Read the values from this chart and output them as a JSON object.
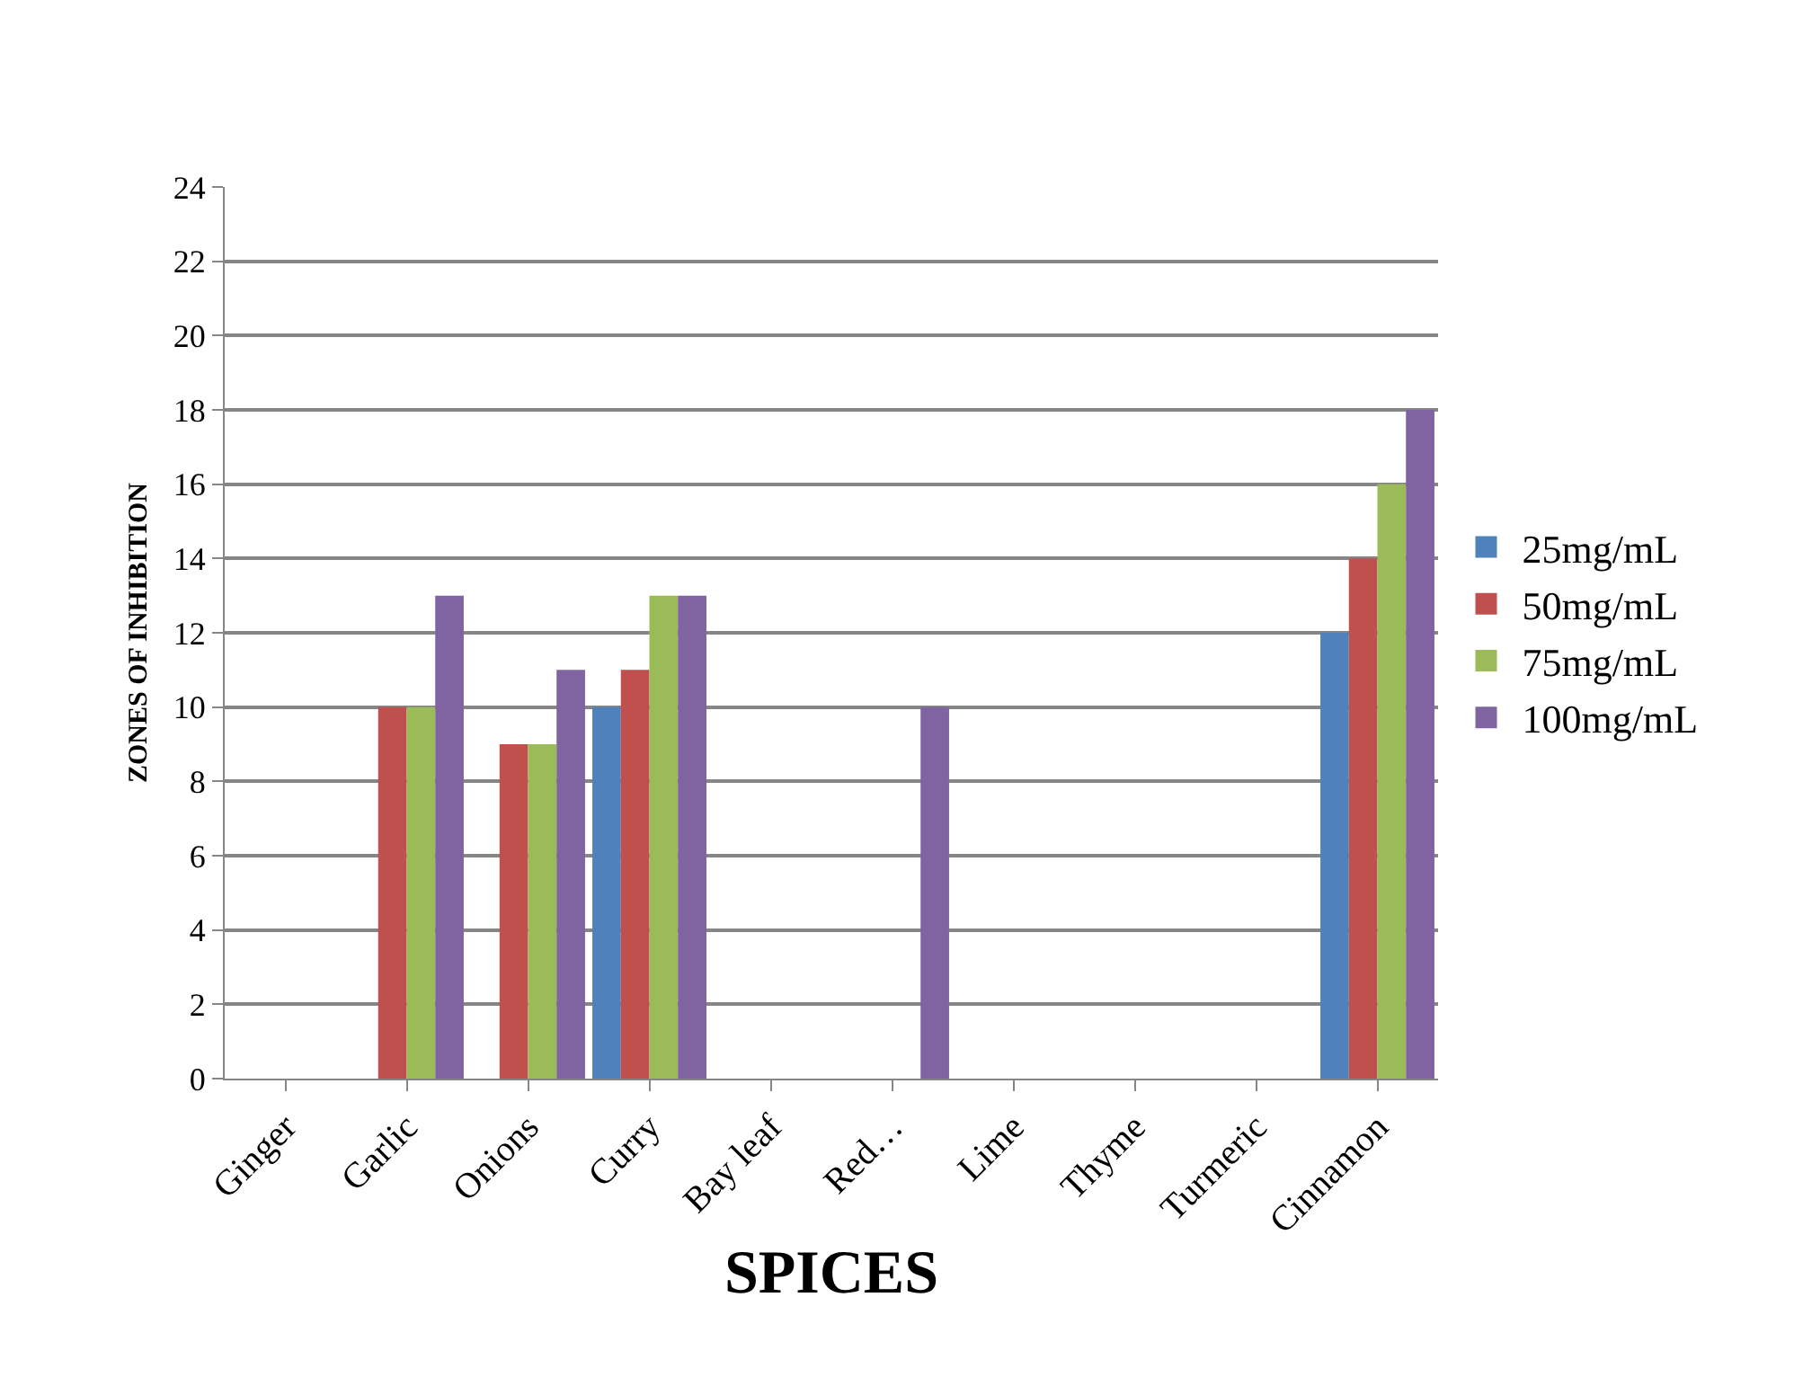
{
  "chart_data": {
    "type": "bar",
    "xlabel": "SPICES",
    "ylabel": "ZONES OF INHIBITION",
    "categories": [
      "Ginger",
      "Garlic",
      "Onions",
      "Curry",
      "Bay leaf",
      "Red…",
      "Lime",
      "Thyme",
      "Turmeric",
      "Cinnamon"
    ],
    "series": [
      {
        "name": "25mg/mL",
        "color": "#4f81bd",
        "values": [
          0,
          0,
          0,
          10,
          0,
          0,
          0,
          0,
          0,
          12
        ]
      },
      {
        "name": "50mg/mL",
        "color": "#c0504d",
        "values": [
          0,
          10,
          9,
          11,
          0,
          0,
          0,
          0,
          0,
          14
        ]
      },
      {
        "name": "75mg/mL",
        "color": "#9bbb59",
        "values": [
          0,
          10,
          9,
          13,
          0,
          0,
          0,
          0,
          0,
          16
        ]
      },
      {
        "name": "100mg/mL",
        "color": "#8064a2",
        "values": [
          0,
          13,
          11,
          13,
          0,
          10,
          0,
          0,
          0,
          18
        ]
      }
    ],
    "ylim": [
      0,
      24
    ],
    "yticks": [
      0,
      2,
      4,
      6,
      8,
      10,
      12,
      14,
      16,
      18,
      20,
      22,
      24
    ],
    "grid": "y",
    "legend": "right"
  }
}
